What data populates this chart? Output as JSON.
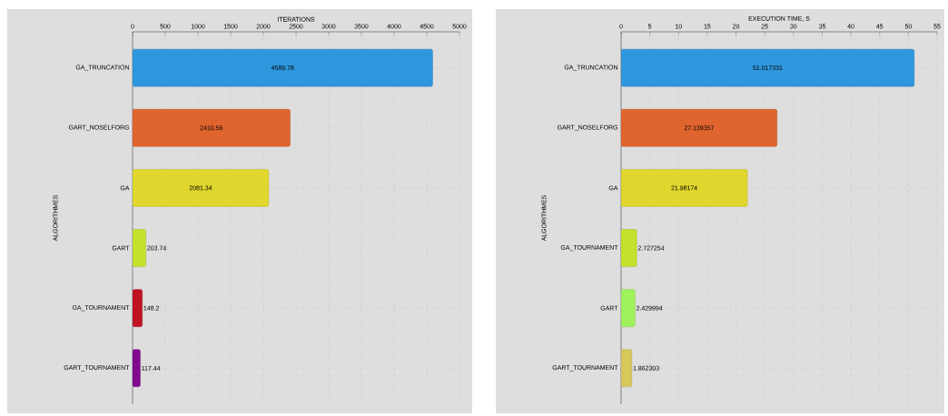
{
  "chart_data": [
    {
      "type": "bar",
      "orientation": "horizontal",
      "xlabel": "ITERATIONS",
      "ylabel": "ALGORITHMES",
      "categories": [
        "GA_TRUNCATION",
        "GART_NOSELFORG",
        "GA",
        "GART",
        "GA_TOURNAMENT",
        "GART_TOURNAMENT"
      ],
      "values": [
        4589.78,
        2410.56,
        2081.34,
        203.74,
        148.2,
        117.44
      ],
      "colors": [
        "#2f97dd",
        "#e0642e",
        "#e0d72e",
        "#c2e22e",
        "#c01222",
        "#800a8e"
      ],
      "xlim": [
        0,
        5000
      ],
      "xticks": [
        0,
        500,
        1000,
        1500,
        2000,
        2500,
        3000,
        3500,
        4000,
        4500,
        5000
      ],
      "grid": true,
      "data_labels": true
    },
    {
      "type": "bar",
      "orientation": "horizontal",
      "xlabel": "EXECUTION TIME, S",
      "ylabel": "ALGORITHMES",
      "categories": [
        "GA_TRUNCATION",
        "GART_NOSELFORG",
        "GA",
        "GA_TOURNAMENT",
        "GART",
        "GART_TOURNAMENT"
      ],
      "values": [
        51.017331,
        27.139357,
        21.98174,
        2.727254,
        2.429994,
        1.862303
      ],
      "colors": [
        "#2f97dd",
        "#e0642e",
        "#e0d72e",
        "#c2e22e",
        "#9ef25c",
        "#d6c85a"
      ],
      "xlim": [
        0,
        55
      ],
      "xticks": [
        0,
        5,
        10,
        15,
        20,
        25,
        30,
        35,
        40,
        45,
        50,
        55
      ],
      "grid": true,
      "data_labels": true
    }
  ]
}
